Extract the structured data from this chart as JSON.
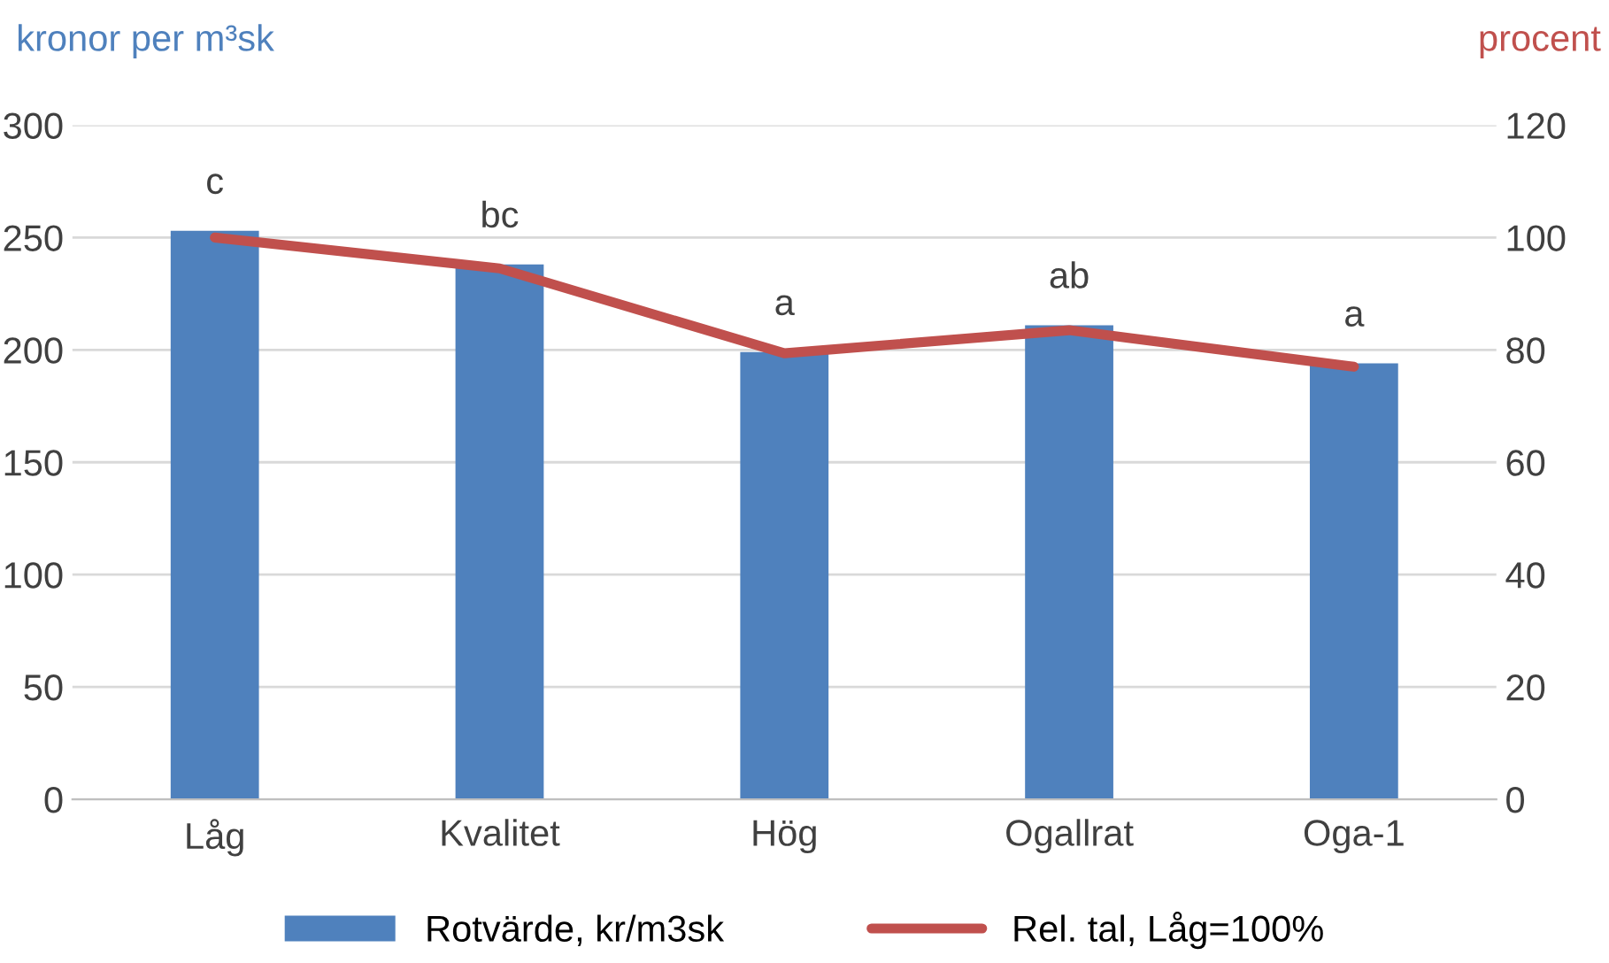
{
  "chart_data": {
    "type": "bar",
    "ylabel": "kronor per m³sk",
    "y2label": "procent",
    "categories": [
      "Låg",
      "Kvalitet",
      "Hög",
      "Ogallrat",
      "Oga-1"
    ],
    "series": [
      {
        "name": "Rotvärde, kr/m3sk",
        "color": "#4f81bd",
        "values": [
          253,
          238,
          199,
          211,
          194
        ]
      },
      {
        "name": "Rel. tal, Låg=100%",
        "type": "line",
        "axis": "y2",
        "color": "#c0504d",
        "values": [
          100,
          94.5,
          79.4,
          83.5,
          77
        ]
      }
    ],
    "ylim": [
      0,
      300
    ],
    "yticks": [
      0,
      50,
      100,
      150,
      200,
      250,
      300
    ],
    "y2lim": [
      0,
      120
    ],
    "y2ticks": [
      0,
      20,
      40,
      60,
      80,
      100,
      120
    ],
    "annotations": [
      "c",
      "bc",
      "a",
      "ab",
      "a"
    ],
    "grid": "y",
    "legend": "bottom"
  }
}
